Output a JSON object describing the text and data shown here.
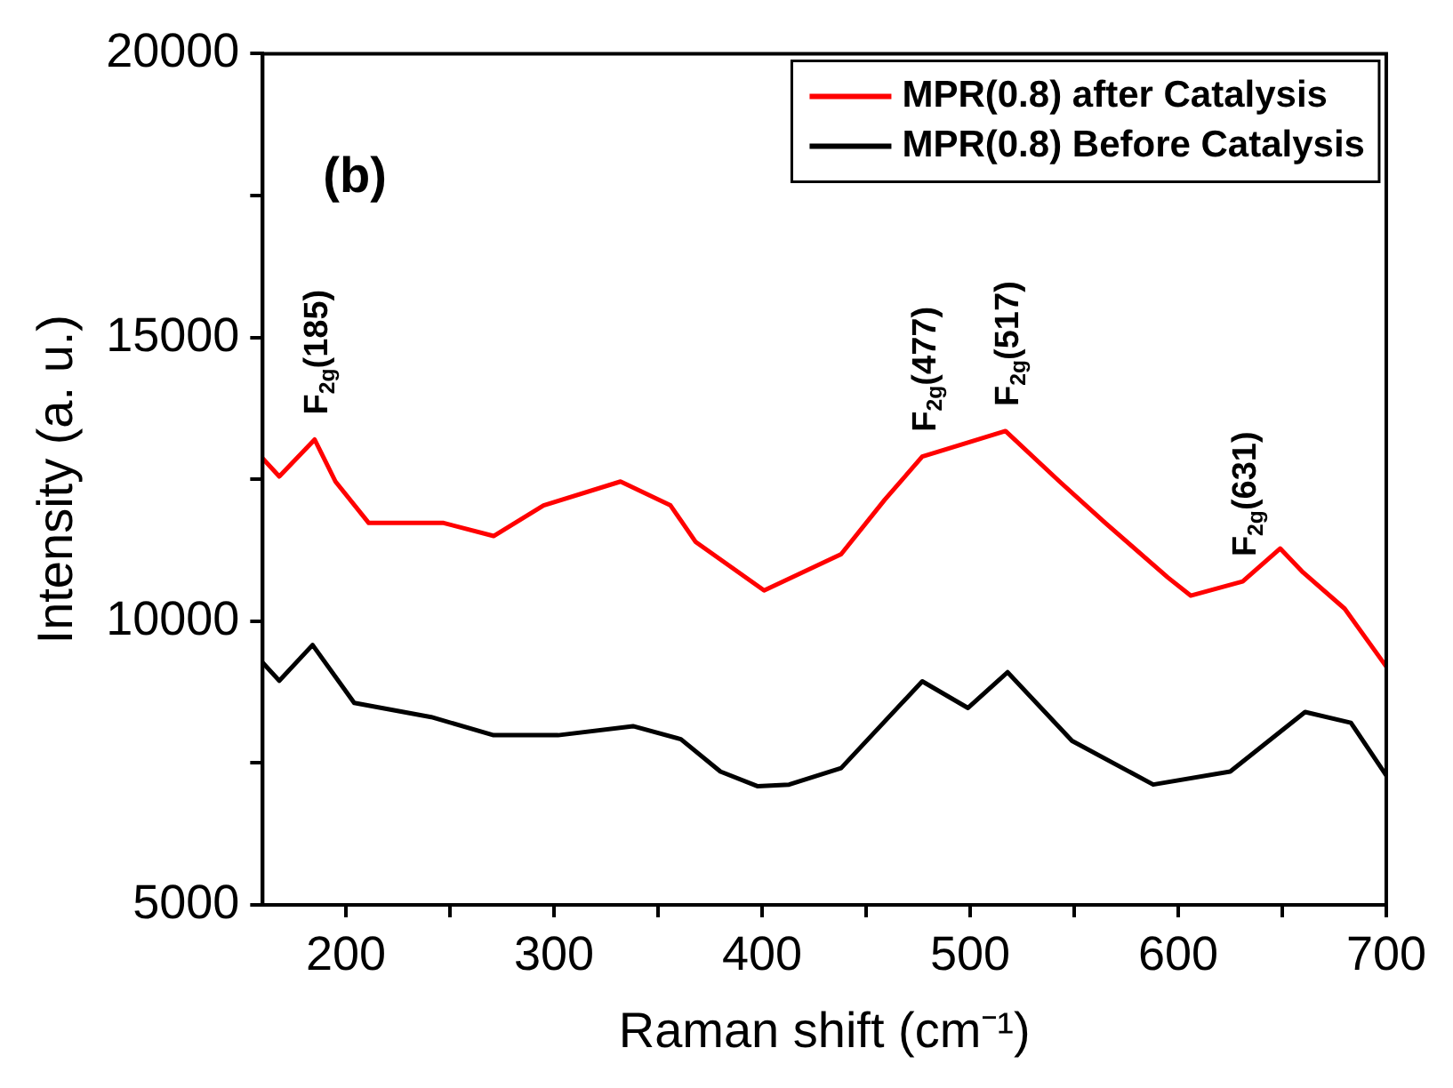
{
  "chart_data": {
    "type": "line",
    "xlabel": "Raman shift (cm⁻¹)",
    "ylabel": "Intensity (a. u.)",
    "xlim": [
      160,
      700
    ],
    "xticks": [
      200,
      {
        "value": 250,
        "label": null
      },
      300,
      {
        "value": 350,
        "label": null
      },
      400,
      {
        "value": 450,
        "label": null
      },
      500,
      {
        "value": 550,
        "label": null
      },
      600,
      {
        "value": 650,
        "label": null
      },
      700
    ],
    "ylim": [
      5000,
      20000
    ],
    "yticks": [
      5000,
      {
        "value": 7500,
        "label": null
      },
      10000,
      {
        "value": 12500,
        "label": null
      },
      15000,
      {
        "value": 17500,
        "label": null
      },
      20000
    ],
    "grid": false,
    "legend": "top right",
    "marker": "none",
    "line_style": "solid",
    "series": [
      {
        "name": "MPR(0.8) after Catalysis",
        "color": "#ff0000",
        "x": [
          160,
          168,
          185,
          195,
          211,
          247,
          271,
          295,
          332,
          356,
          368,
          401,
          438,
          459,
          477,
          517,
          543,
          565,
          595,
          606,
          631,
          649,
          660,
          680,
          700
        ],
        "values": [
          12870,
          12550,
          13200,
          12460,
          11730,
          11730,
          11500,
          12040,
          12460,
          12040,
          11400,
          10540,
          11180,
          12140,
          12900,
          13350,
          12460,
          11730,
          10770,
          10450,
          10700,
          11280,
          10860,
          10220,
          9200
        ]
      },
      {
        "name": "MPR(0.8) Before Catalysis",
        "color": "#000000",
        "x": [
          160,
          168,
          184,
          204,
          241,
          271,
          302,
          338,
          361,
          380,
          398,
          413,
          438,
          477,
          499,
          518,
          549,
          588,
          625,
          661,
          683,
          700
        ],
        "values": [
          9270,
          8950,
          9580,
          8560,
          8310,
          7990,
          7990,
          8150,
          7920,
          7350,
          7090,
          7120,
          7410,
          8940,
          8470,
          9100,
          7890,
          7120,
          7350,
          8400,
          8210,
          7280
        ]
      }
    ],
    "annotations": [
      "(b)",
      {
        "text": "F$_{2g}$(185)",
        "x": 185,
        "y": 13200
      },
      {
        "text": "F$_{2g}$(477)",
        "x": 477,
        "y": 12900
      },
      {
        "text": "F$_{2g}$(517)",
        "x": 517,
        "y": 13350
      },
      {
        "text": "F$_{2g}$(631)",
        "x": 631,
        "y": 10700
      }
    ]
  }
}
